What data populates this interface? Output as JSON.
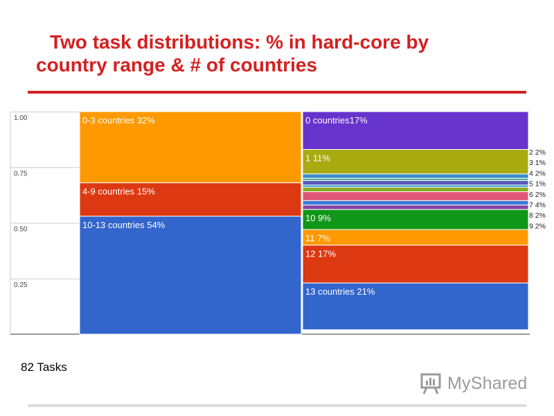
{
  "title": {
    "line1": "Two task distributions: % in hard-core by",
    "line2": "country range & # of countries"
  },
  "footer": {
    "tasks_label": "82 Tasks",
    "brand": "MyShared"
  },
  "colors": {
    "title": "#d42020",
    "orange": "#ff9900",
    "red": "#dc3912",
    "blue": "#3366cc",
    "purple": "#6633cc",
    "olive": "#aaaa11",
    "green": "#109618"
  },
  "chart_data": {
    "type": "bar",
    "stacked": true,
    "ylim": [
      0,
      1
    ],
    "yticks": [
      "0.25",
      "0.50",
      "0.75",
      "1.00"
    ],
    "ytick_values": [
      0.25,
      0.5,
      0.75,
      1.0
    ],
    "grid": true,
    "bars": [
      {
        "segments": [
          {
            "label": "0-3 countries 32%",
            "value": 0.32,
            "color": "#ff9900"
          },
          {
            "label": "4-9 countries 15%",
            "value": 0.15,
            "color": "#dc3912"
          },
          {
            "label": "10-13 countries 54%",
            "value": 0.54,
            "color": "#3366cc"
          }
        ]
      },
      {
        "segments": [
          {
            "label": "0  countries17%",
            "value": 0.17,
            "color": "#6633cc",
            "label_pos": "inside"
          },
          {
            "label": "1 11%",
            "value": 0.11,
            "color": "#aaaa11",
            "label_pos": "inside"
          },
          {
            "label": "2 2%",
            "value": 0.02,
            "color": "#3b8ec8",
            "label_pos": "right"
          },
          {
            "label": "3 1%",
            "value": 0.01,
            "color": "#55aa99",
            "label_pos": "right"
          },
          {
            "label": "4 2%",
            "value": 0.02,
            "color": "#5a5ab8",
            "label_pos": "right"
          },
          {
            "label": "5 1%",
            "value": 0.01,
            "color": "#3399cc",
            "label_pos": "right"
          },
          {
            "label": "6 2%",
            "value": 0.02,
            "color": "#88aa22",
            "label_pos": "right"
          },
          {
            "label": "7 4%",
            "value": 0.04,
            "color": "#e05577",
            "label_pos": "right"
          },
          {
            "label": "8 2%",
            "value": 0.02,
            "color": "#3a7ad6",
            "label_pos": "right"
          },
          {
            "label": "9 2%",
            "value": 0.02,
            "color": "#8844aa",
            "label_pos": "right"
          },
          {
            "label": "10 9%",
            "value": 0.09,
            "color": "#109618",
            "label_pos": "inside"
          },
          {
            "label": "11 7%",
            "value": 0.07,
            "color": "#ff9900",
            "label_pos": "inside"
          },
          {
            "label": "12 17%",
            "value": 0.17,
            "color": "#dc3912",
            "label_pos": "inside"
          },
          {
            "label": "13 countries 21%",
            "value": 0.21,
            "color": "#3366cc",
            "label_pos": "inside"
          }
        ]
      }
    ]
  }
}
